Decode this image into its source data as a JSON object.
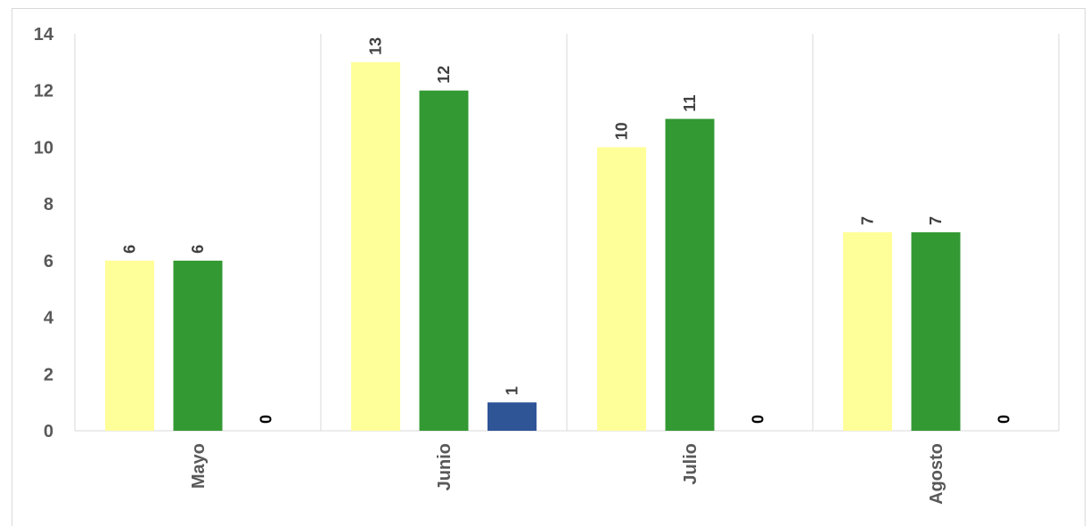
{
  "chart_data": {
    "type": "bar",
    "categories": [
      "Mayo",
      "Junio",
      "Julio",
      "Agosto"
    ],
    "series": [
      {
        "color": "#ffff99",
        "values": [
          6,
          13,
          10,
          7
        ]
      },
      {
        "color": "#339933",
        "values": [
          6,
          12,
          11,
          7
        ]
      },
      {
        "color": "#2f5597",
        "values": [
          0,
          1,
          0,
          0
        ]
      }
    ],
    "ylim": [
      0,
      14
    ],
    "yticks": [
      0,
      2,
      4,
      6,
      8,
      10,
      12,
      14
    ],
    "grid": "vertical category separators",
    "legend": "none",
    "data_labels": "rotated, above bars"
  }
}
